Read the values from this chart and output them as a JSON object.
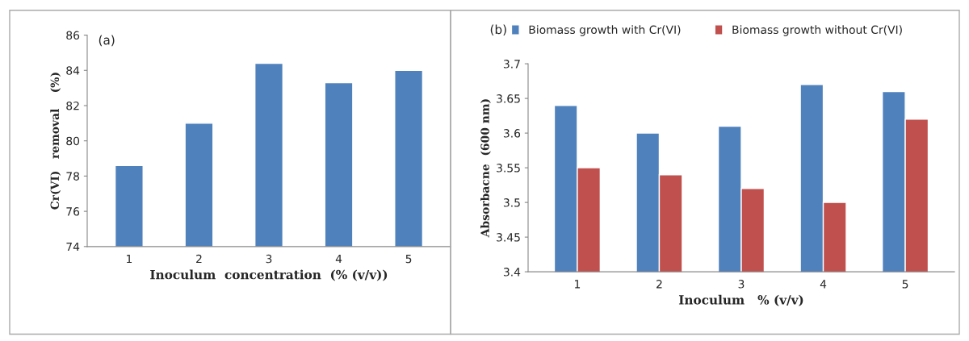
{
  "chart_data": [
    {
      "type": "bar",
      "annotations": [
        "(a)"
      ],
      "xlabel": "Inoculum  concentration  (% (v/v))",
      "ylabel": "Cr(VI)   removal    (%)",
      "categories": [
        "1",
        "2",
        "3",
        "4",
        "5"
      ],
      "series": [
        {
          "color": "#4f81bd",
          "values": [
            78.6,
            81.0,
            84.4,
            83.3,
            84.0
          ]
        }
      ],
      "ylim": [
        74,
        86
      ],
      "yticks": [
        74,
        76,
        78,
        80,
        82,
        84,
        86
      ],
      "grid": false
    },
    {
      "type": "bar",
      "annotations": [
        "(b)"
      ],
      "xlabel": "Inoculum   % (v/v)",
      "ylabel": "Absorbacne  (600 nm)",
      "categories": [
        "1",
        "2",
        "3",
        "4",
        "5"
      ],
      "series": [
        {
          "name": "Biomass growth with Cr(VI)",
          "color": "#4f81bd",
          "values": [
            3.64,
            3.6,
            3.61,
            3.67,
            3.66
          ]
        },
        {
          "name": "Biomass growth without Cr(VI)",
          "color": "#c0504d",
          "values": [
            3.55,
            3.54,
            3.52,
            3.5,
            3.62
          ]
        }
      ],
      "ylim": [
        3.4,
        3.7
      ],
      "yticks": [
        3.4,
        3.45,
        3.5,
        3.55,
        3.6,
        3.65,
        3.7
      ],
      "grid": false,
      "legend": "top"
    }
  ]
}
